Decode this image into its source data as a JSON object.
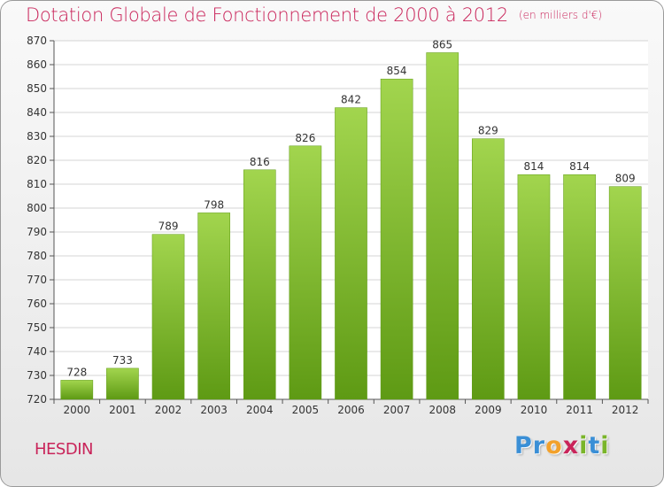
{
  "title": "Dotation Globale de Fonctionnement de 2000 à 2012",
  "subtitle": "(en milliers d'€)",
  "commune": "HESDIN",
  "brand": {
    "text": "Proxiti",
    "letter_colors": [
      "#3a8fd6",
      "#3a8fd6",
      "#f2a12b",
      "#c9245a",
      "#7ab52a",
      "#3a8fd6",
      "#7ab52a"
    ]
  },
  "colors": {
    "title": "#c9245a",
    "bar_top": "#a2d54e",
    "bar_bottom": "#5e9a14",
    "grid": "#d4d4d4"
  },
  "chart_data": {
    "type": "bar",
    "title": "Dotation Globale de Fonctionnement de 2000 à 2012",
    "subtitle": "(en milliers d'€)",
    "xlabel": "",
    "ylabel": "",
    "categories": [
      "2000",
      "2001",
      "2002",
      "2003",
      "2004",
      "2005",
      "2006",
      "2007",
      "2008",
      "2009",
      "2010",
      "2011",
      "2012"
    ],
    "values": [
      728,
      733,
      789,
      798,
      816,
      826,
      842,
      854,
      865,
      829,
      814,
      814,
      809
    ],
    "ylim": [
      720,
      870
    ],
    "yticks": [
      720,
      730,
      740,
      750,
      760,
      770,
      780,
      790,
      800,
      810,
      820,
      830,
      840,
      850,
      860,
      870
    ],
    "grid": true,
    "legend": "none"
  }
}
